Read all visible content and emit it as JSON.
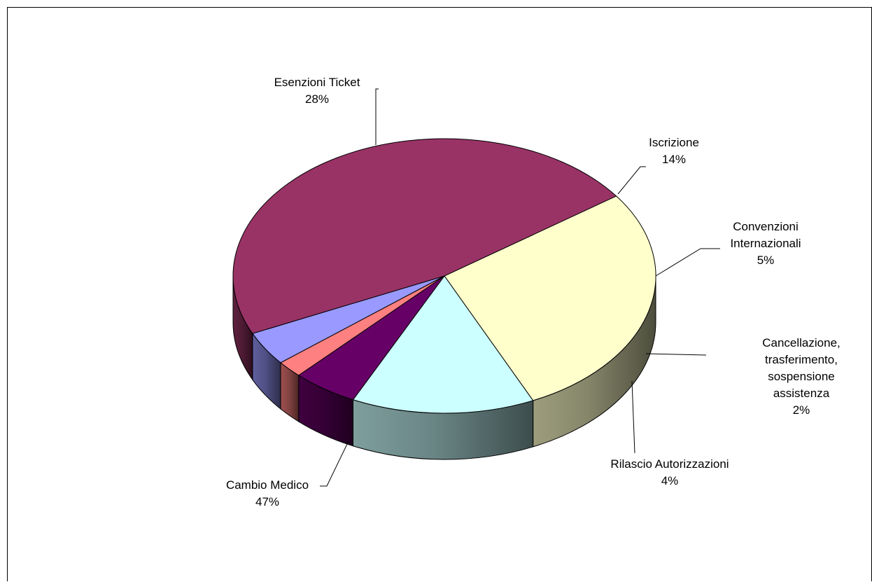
{
  "chart_data": {
    "type": "pie",
    "title": "",
    "legend": "none",
    "slices": [
      {
        "name": "Esenzioni Ticket",
        "value": 28,
        "percent_label": "28%",
        "color": "#FFFFCC",
        "label_lines": [
          "Esenzioni Ticket"
        ]
      },
      {
        "name": "Iscrizione",
        "value": 14,
        "percent_label": "14%",
        "color": "#CCFFFF",
        "label_lines": [
          "Iscrizione"
        ]
      },
      {
        "name": "Convenzioni Internazionali",
        "value": 5,
        "percent_label": "5%",
        "color": "#660066",
        "label_lines": [
          "Convenzioni",
          "Internazionali"
        ]
      },
      {
        "name": "Cancellazione, trasferimento, sospensione assistenza",
        "value": 2,
        "percent_label": "2%",
        "color": "#FF8080",
        "label_lines": [
          "Cancellazione,",
          "trasferimento,",
          "sospensione",
          "assistenza"
        ]
      },
      {
        "name": "Rilascio Autorizzazioni",
        "value": 4,
        "percent_label": "4%",
        "color": "#9999FF",
        "label_lines": [
          "Rilascio Autorizzazioni"
        ]
      },
      {
        "name": "Cambio Medico",
        "value": 47,
        "percent_label": "47%",
        "color": "#993366",
        "label_lines": [
          "Cambio Medico"
        ]
      }
    ]
  }
}
